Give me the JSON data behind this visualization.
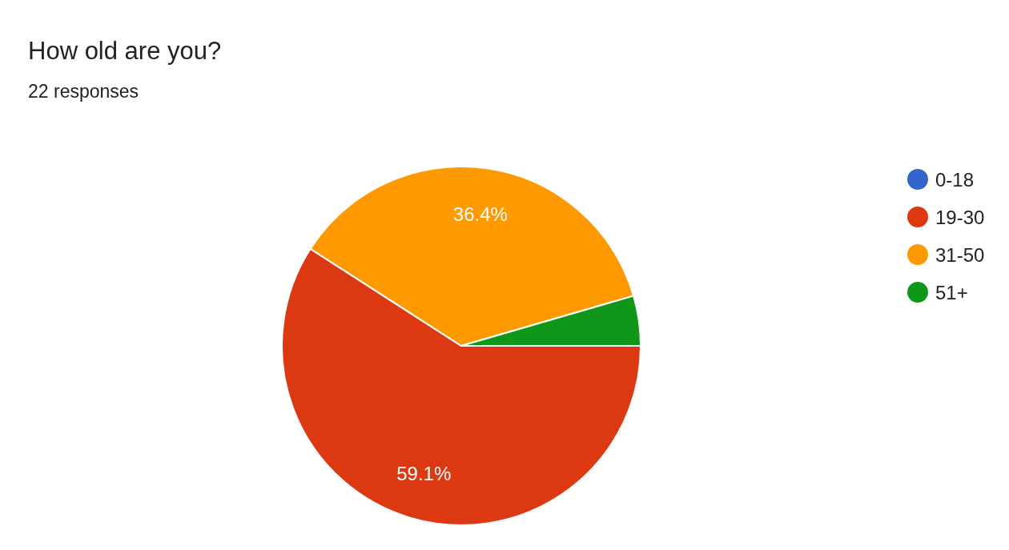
{
  "chart_data": {
    "type": "pie",
    "title": "How old are you?",
    "subtitle": "22 responses",
    "categories": [
      "0-18",
      "19-30",
      "31-50",
      "51+"
    ],
    "values": [
      0,
      59.1,
      36.4,
      4.5
    ],
    "colors": [
      "#3366cc",
      "#dc3912",
      "#ff9900",
      "#109618"
    ],
    "value_labels": [
      null,
      "59.1%",
      "36.4%",
      null
    ],
    "legend": "right"
  }
}
